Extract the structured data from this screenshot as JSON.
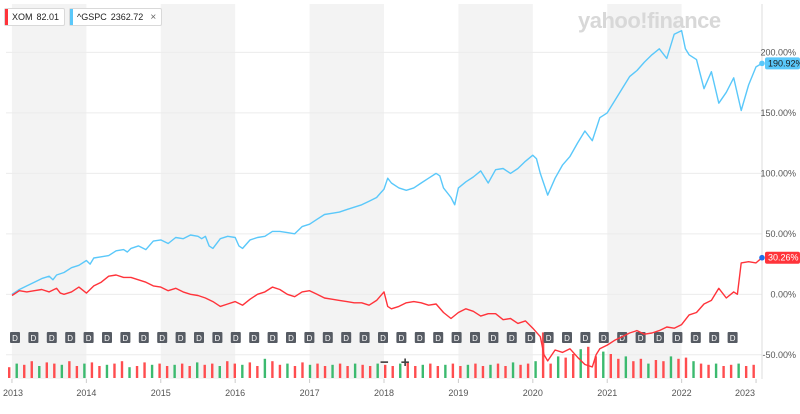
{
  "legend": [
    {
      "ticker": "XOM",
      "value": "82.01",
      "color": "#ff333a",
      "closable": false
    },
    {
      "ticker": "^GSPC",
      "value": "2362.72",
      "color": "#5ac8fa",
      "closable": true,
      "close_icon": "×"
    }
  ],
  "watermark": "yahoo!finance",
  "zoom": {
    "minus": "−",
    "plus": "+"
  },
  "chart_data": {
    "type": "line",
    "y_axis": {
      "position": "right",
      "ticks": [
        "200.00%",
        "150.00%",
        "100.00%",
        "50.00%",
        "0.00%",
        "-50.00%"
      ],
      "tick_values": [
        200,
        150,
        100,
        50,
        0,
        -50
      ],
      "range": [
        -70,
        240
      ]
    },
    "x_axis": {
      "ticks": [
        "2013",
        "2014",
        "2015",
        "2016",
        "2017",
        "2018",
        "2019",
        "2020",
        "2021",
        "2022",
        "2023"
      ],
      "range": [
        2012.92,
        2023.08
      ]
    },
    "grid": "alternating yearly column bands",
    "series": [
      {
        "name": "^GSPC",
        "color": "#5ac8fa",
        "last_label": "190.92%",
        "points": [
          [
            2013.0,
            0
          ],
          [
            2013.1,
            4
          ],
          [
            2013.2,
            7
          ],
          [
            2013.3,
            10
          ],
          [
            2013.4,
            13
          ],
          [
            2013.5,
            15
          ],
          [
            2013.55,
            12
          ],
          [
            2013.6,
            16
          ],
          [
            2013.7,
            18
          ],
          [
            2013.8,
            22
          ],
          [
            2013.9,
            24
          ],
          [
            2014.0,
            28
          ],
          [
            2014.05,
            25
          ],
          [
            2014.1,
            30
          ],
          [
            2014.2,
            31
          ],
          [
            2014.3,
            32
          ],
          [
            2014.4,
            36
          ],
          [
            2014.5,
            37
          ],
          [
            2014.55,
            35
          ],
          [
            2014.6,
            38
          ],
          [
            2014.7,
            40
          ],
          [
            2014.8,
            37
          ],
          [
            2014.9,
            44
          ],
          [
            2015.0,
            45
          ],
          [
            2015.1,
            42
          ],
          [
            2015.2,
            47
          ],
          [
            2015.3,
            46
          ],
          [
            2015.4,
            49
          ],
          [
            2015.5,
            48
          ],
          [
            2015.55,
            46
          ],
          [
            2015.6,
            48
          ],
          [
            2015.65,
            40
          ],
          [
            2015.7,
            38
          ],
          [
            2015.8,
            46
          ],
          [
            2015.9,
            48
          ],
          [
            2016.0,
            47
          ],
          [
            2016.05,
            40
          ],
          [
            2016.1,
            38
          ],
          [
            2016.2,
            45
          ],
          [
            2016.3,
            47
          ],
          [
            2016.4,
            48
          ],
          [
            2016.5,
            52
          ],
          [
            2016.6,
            52
          ],
          [
            2016.7,
            51
          ],
          [
            2016.8,
            50
          ],
          [
            2016.9,
            56
          ],
          [
            2017.0,
            58
          ],
          [
            2017.1,
            62
          ],
          [
            2017.2,
            66
          ],
          [
            2017.3,
            67
          ],
          [
            2017.4,
            68
          ],
          [
            2017.5,
            70
          ],
          [
            2017.6,
            72
          ],
          [
            2017.7,
            74
          ],
          [
            2017.8,
            77
          ],
          [
            2017.9,
            80
          ],
          [
            2018.0,
            87
          ],
          [
            2018.05,
            96
          ],
          [
            2018.1,
            92
          ],
          [
            2018.2,
            88
          ],
          [
            2018.3,
            86
          ],
          [
            2018.4,
            88
          ],
          [
            2018.5,
            92
          ],
          [
            2018.6,
            96
          ],
          [
            2018.7,
            100
          ],
          [
            2018.75,
            98
          ],
          [
            2018.8,
            88
          ],
          [
            2018.9,
            80
          ],
          [
            2018.95,
            74
          ],
          [
            2019.0,
            88
          ],
          [
            2019.1,
            93
          ],
          [
            2019.2,
            97
          ],
          [
            2019.3,
            102
          ],
          [
            2019.4,
            92
          ],
          [
            2019.5,
            103
          ],
          [
            2019.6,
            104
          ],
          [
            2019.7,
            100
          ],
          [
            2019.8,
            104
          ],
          [
            2019.9,
            110
          ],
          [
            2020.0,
            115
          ],
          [
            2020.05,
            112
          ],
          [
            2020.1,
            100
          ],
          [
            2020.2,
            82
          ],
          [
            2020.3,
            96
          ],
          [
            2020.4,
            107
          ],
          [
            2020.5,
            114
          ],
          [
            2020.6,
            125
          ],
          [
            2020.7,
            135
          ],
          [
            2020.8,
            127
          ],
          [
            2020.9,
            146
          ],
          [
            2021.0,
            150
          ],
          [
            2021.1,
            160
          ],
          [
            2021.2,
            170
          ],
          [
            2021.3,
            180
          ],
          [
            2021.4,
            185
          ],
          [
            2021.5,
            192
          ],
          [
            2021.6,
            198
          ],
          [
            2021.7,
            203
          ],
          [
            2021.8,
            195
          ],
          [
            2021.9,
            215
          ],
          [
            2022.0,
            218
          ],
          [
            2022.05,
            203
          ],
          [
            2022.1,
            198
          ],
          [
            2022.2,
            194
          ],
          [
            2022.3,
            170
          ],
          [
            2022.4,
            184
          ],
          [
            2022.5,
            158
          ],
          [
            2022.6,
            167
          ],
          [
            2022.7,
            179
          ],
          [
            2022.8,
            152
          ],
          [
            2022.9,
            173
          ],
          [
            2023.0,
            188
          ],
          [
            2023.08,
            190.92
          ]
        ]
      },
      {
        "name": "XOM",
        "color": "#ff333a",
        "last_label": "30.26%",
        "points": [
          [
            2013.0,
            -1
          ],
          [
            2013.1,
            3
          ],
          [
            2013.2,
            2
          ],
          [
            2013.3,
            3
          ],
          [
            2013.4,
            4
          ],
          [
            2013.5,
            2
          ],
          [
            2013.6,
            5
          ],
          [
            2013.65,
            1
          ],
          [
            2013.7,
            0
          ],
          [
            2013.8,
            2
          ],
          [
            2013.9,
            6
          ],
          [
            2014.0,
            1
          ],
          [
            2014.1,
            7
          ],
          [
            2014.2,
            10
          ],
          [
            2014.3,
            15
          ],
          [
            2014.4,
            16
          ],
          [
            2014.5,
            14
          ],
          [
            2014.6,
            14
          ],
          [
            2014.7,
            12
          ],
          [
            2014.8,
            10
          ],
          [
            2014.9,
            7
          ],
          [
            2015.0,
            6
          ],
          [
            2015.1,
            3
          ],
          [
            2015.2,
            5
          ],
          [
            2015.3,
            2
          ],
          [
            2015.4,
            0
          ],
          [
            2015.5,
            -1
          ],
          [
            2015.6,
            -3
          ],
          [
            2015.7,
            -6
          ],
          [
            2015.8,
            -10
          ],
          [
            2015.9,
            -8
          ],
          [
            2016.0,
            -6
          ],
          [
            2016.1,
            -9
          ],
          [
            2016.2,
            -4
          ],
          [
            2016.3,
            0
          ],
          [
            2016.4,
            2
          ],
          [
            2016.5,
            6
          ],
          [
            2016.6,
            4
          ],
          [
            2016.7,
            0
          ],
          [
            2016.8,
            -2
          ],
          [
            2016.9,
            2
          ],
          [
            2017.0,
            3
          ],
          [
            2017.1,
            0
          ],
          [
            2017.2,
            -3
          ],
          [
            2017.3,
            -4
          ],
          [
            2017.4,
            -5
          ],
          [
            2017.5,
            -6
          ],
          [
            2017.6,
            -7
          ],
          [
            2017.7,
            -7
          ],
          [
            2017.8,
            -9
          ],
          [
            2017.9,
            -5
          ],
          [
            2018.0,
            2
          ],
          [
            2018.05,
            -10
          ],
          [
            2018.1,
            -12
          ],
          [
            2018.2,
            -10
          ],
          [
            2018.3,
            -7
          ],
          [
            2018.4,
            -6
          ],
          [
            2018.5,
            -7
          ],
          [
            2018.6,
            -9
          ],
          [
            2018.7,
            -8
          ],
          [
            2018.8,
            -15
          ],
          [
            2018.9,
            -20
          ],
          [
            2019.0,
            -15
          ],
          [
            2019.1,
            -12
          ],
          [
            2019.2,
            -14
          ],
          [
            2019.3,
            -18
          ],
          [
            2019.4,
            -16
          ],
          [
            2019.5,
            -16
          ],
          [
            2019.6,
            -21
          ],
          [
            2019.7,
            -20
          ],
          [
            2019.8,
            -24
          ],
          [
            2019.9,
            -22
          ],
          [
            2020.0,
            -28
          ],
          [
            2020.1,
            -35
          ],
          [
            2020.15,
            -50
          ],
          [
            2020.2,
            -55
          ],
          [
            2020.3,
            -46
          ],
          [
            2020.4,
            -48
          ],
          [
            2020.5,
            -45
          ],
          [
            2020.6,
            -52
          ],
          [
            2020.7,
            -58
          ],
          [
            2020.8,
            -60
          ],
          [
            2020.85,
            -50
          ],
          [
            2020.9,
            -45
          ],
          [
            2021.0,
            -42
          ],
          [
            2021.1,
            -38
          ],
          [
            2021.2,
            -35
          ],
          [
            2021.3,
            -32
          ],
          [
            2021.4,
            -30
          ],
          [
            2021.5,
            -33
          ],
          [
            2021.6,
            -32
          ],
          [
            2021.7,
            -30
          ],
          [
            2021.8,
            -27
          ],
          [
            2021.9,
            -28
          ],
          [
            2022.0,
            -25
          ],
          [
            2022.1,
            -17
          ],
          [
            2022.2,
            -15
          ],
          [
            2022.3,
            -8
          ],
          [
            2022.4,
            -5
          ],
          [
            2022.5,
            5
          ],
          [
            2022.6,
            -3
          ],
          [
            2022.7,
            2
          ],
          [
            2022.75,
            0
          ],
          [
            2022.8,
            26
          ],
          [
            2022.9,
            27
          ],
          [
            2023.0,
            26
          ],
          [
            2023.08,
            30.26
          ]
        ]
      }
    ],
    "volume_bars": {
      "note": "relative heights 0-1",
      "values": [
        0.45,
        0.6,
        0.55,
        0.7,
        0.5,
        0.65,
        0.6,
        0.55,
        0.7,
        0.5,
        0.6,
        0.65,
        0.5,
        0.55,
        0.6,
        0.7,
        0.45,
        0.5,
        0.65,
        0.55,
        0.6,
        0.5,
        0.55,
        0.6,
        0.5,
        0.65,
        0.55,
        0.6,
        0.5,
        0.7,
        0.6,
        0.55,
        0.65,
        0.5,
        0.8,
        0.7,
        0.55,
        0.6,
        0.5,
        0.65,
        0.55,
        0.6,
        0.5,
        0.55,
        0.6,
        0.5,
        0.6,
        0.55,
        0.5,
        0.6,
        0.55,
        0.5,
        0.6,
        0.65,
        0.5,
        0.55,
        0.6,
        0.5,
        0.55,
        0.6,
        0.5,
        0.55,
        0.6,
        0.5,
        0.55,
        0.6,
        0.5,
        0.65,
        0.55,
        0.6,
        0.7,
        1.9,
        0.6,
        0.9,
        0.85,
        1.0,
        1.2,
        1.3,
        0.9,
        1.1,
        1.0,
        0.8,
        0.9,
        0.7,
        0.8,
        0.6,
        0.75,
        0.7,
        0.9,
        0.8,
        0.85,
        0.7,
        0.6,
        0.55,
        0.6,
        0.5,
        0.55,
        0.6,
        0.5,
        0.55
      ]
    },
    "dividend_markers": {
      "label": "D",
      "count": 40
    }
  }
}
